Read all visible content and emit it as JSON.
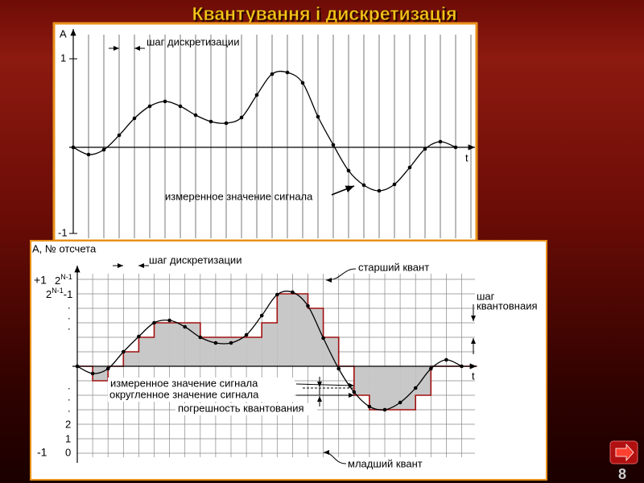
{
  "header": {
    "title": "Квантування і дискретизація"
  },
  "top_diagram": {
    "y_axis": "A",
    "tick_pos": "1",
    "tick_neg": "-1",
    "x_axis": "t",
    "step_label": "шаг дискретизации",
    "measured_label": "измеренное значение сигнала"
  },
  "bottom_diagram": {
    "y_axis": "A, № отсчета",
    "step_label": "шаг дискретизации",
    "top_quantum": "старший квант",
    "bottom_quantum": "младший квант",
    "plus_one": "+1",
    "minus_one": "-1",
    "level_max": {
      "base": "2",
      "sup": "N-1"
    },
    "level_max_minus": {
      "base": "2",
      "sup": "N-1",
      "tail": "-1"
    },
    "level_2": "2",
    "level_1": "1",
    "level_0": "0",
    "x_axis": "t",
    "quant_step": [
      "шаг",
      "квантовнаия"
    ],
    "measured_label": "измеренное значение сигнала",
    "rounded_label": "округленное значение сигнала",
    "error_label": "погрешность квантования"
  },
  "footer": {
    "page_number": "8"
  }
}
